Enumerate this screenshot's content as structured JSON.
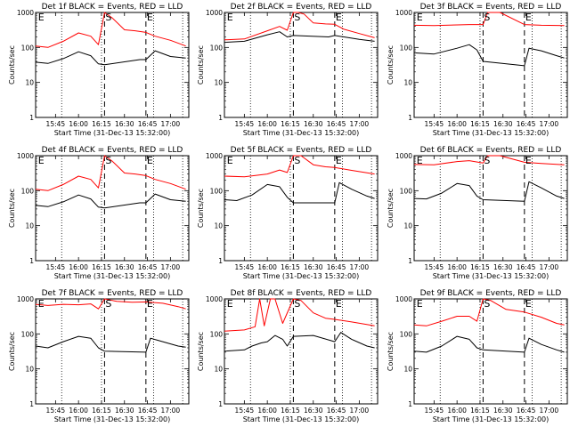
{
  "chart_data": {
    "type": "line",
    "panel_count": 9,
    "layout": "3x3 grid",
    "xlabel": "Start Time (31-Dec-13 15:32:00)",
    "ylabel": "Counts/sec",
    "y_scale": "log",
    "ylim": [
      1,
      1000
    ],
    "y_ticks": [
      "1",
      "10",
      "100",
      "1000"
    ],
    "x_ticks": [
      "15:45",
      "16:00",
      "16:15",
      "16:30",
      "16:45",
      "17:00"
    ],
    "xlim": [
      "15:32",
      "17:12"
    ],
    "event_markers": {
      "dotted_lines": [
        "15:49",
        "16:15",
        "16:49",
        "17:08"
      ],
      "dashed_lines": [
        "16:17",
        "16:44"
      ],
      "labels": [
        {
          "text": "E",
          "time": "15:33"
        },
        {
          "text": "S",
          "time": "16:17"
        },
        {
          "text": "E",
          "time": "16:44"
        }
      ]
    },
    "colors": {
      "events": "#000000",
      "lld": "#ff0000"
    },
    "series_names": [
      "BLACK = Events",
      "RED = LLD"
    ],
    "panels": [
      {
        "title": "Det 1f BLACK = Events, RED = LLD",
        "events": {
          "t": [
            "15:32",
            "15:40",
            "15:50",
            "16:00",
            "16:08",
            "16:13",
            "16:17",
            "16:40",
            "16:44",
            "16:50",
            "17:00",
            "17:10"
          ],
          "v": [
            38,
            35,
            48,
            75,
            58,
            34,
            32,
            45,
            45,
            80,
            55,
            50
          ]
        },
        "lld": {
          "t": [
            "15:32",
            "15:40",
            "15:50",
            "16:00",
            "16:08",
            "16:13",
            "16:17",
            "16:22",
            "16:30",
            "16:37",
            "16:44",
            "16:50",
            "17:00",
            "17:10"
          ],
          "v": [
            110,
            100,
            150,
            260,
            210,
            120,
            1000,
            700,
            320,
            300,
            270,
            210,
            160,
            110
          ]
        }
      },
      {
        "title": "Det 2f BLACK = Events, RED = LLD",
        "events": {
          "t": [
            "15:32",
            "15:45",
            "16:00",
            "16:08",
            "16:13",
            "16:17",
            "16:40",
            "16:44",
            "16:50",
            "17:00",
            "17:10"
          ],
          "v": [
            140,
            150,
            230,
            280,
            200,
            220,
            200,
            220,
            200,
            170,
            150
          ]
        },
        "lld": {
          "t": [
            "15:32",
            "15:45",
            "16:00",
            "16:08",
            "16:13",
            "16:17",
            "16:20",
            "16:24",
            "16:30",
            "16:38",
            "16:44",
            "16:50",
            "17:00",
            "17:10"
          ],
          "v": [
            165,
            175,
            300,
            400,
            310,
            1000,
            1000,
            900,
            500,
            470,
            460,
            330,
            250,
            190
          ]
        }
      },
      {
        "title": "Det 3f BLACK = Events, RED = LLD",
        "events": {
          "t": [
            "15:32",
            "15:45",
            "16:00",
            "16:08",
            "16:13",
            "16:17",
            "16:44",
            "16:47",
            "16:55",
            "17:05",
            "17:10"
          ],
          "v": [
            70,
            65,
            95,
            120,
            85,
            40,
            30,
            95,
            80,
            58,
            50
          ]
        },
        "lld": {
          "t": [
            "15:32",
            "15:45",
            "16:00",
            "16:08",
            "16:17",
            "16:20",
            "16:28",
            "16:44",
            "16:55",
            "17:10"
          ],
          "v": [
            430,
            420,
            440,
            450,
            450,
            1000,
            1000,
            450,
            430,
            420
          ]
        }
      },
      {
        "title": "Det 4f BLACK = Events, RED = LLD",
        "events": {
          "t": [
            "15:32",
            "15:40",
            "15:50",
            "16:00",
            "16:08",
            "16:13",
            "16:17",
            "16:40",
            "16:44",
            "16:50",
            "17:00",
            "17:10"
          ],
          "v": [
            38,
            35,
            48,
            75,
            58,
            34,
            32,
            45,
            45,
            80,
            55,
            50
          ]
        },
        "lld": {
          "t": [
            "15:32",
            "15:40",
            "15:50",
            "16:00",
            "16:08",
            "16:13",
            "16:17",
            "16:22",
            "16:30",
            "16:37",
            "16:44",
            "16:50",
            "17:00",
            "17:10"
          ],
          "v": [
            110,
            100,
            150,
            260,
            210,
            120,
            1000,
            700,
            320,
            300,
            270,
            210,
            160,
            110
          ]
        }
      },
      {
        "title": "Det 5f BLACK = Events, RED = LLD",
        "events": {
          "t": [
            "15:32",
            "15:40",
            "15:50",
            "16:00",
            "16:08",
            "16:13",
            "16:17",
            "16:44",
            "16:47",
            "16:55",
            "17:05",
            "17:10"
          ],
          "v": [
            55,
            52,
            75,
            150,
            130,
            65,
            45,
            45,
            170,
            110,
            70,
            60
          ]
        },
        "lld": {
          "t": [
            "15:32",
            "15:45",
            "16:00",
            "16:08",
            "16:13",
            "16:17",
            "16:22",
            "16:30",
            "16:38",
            "16:44",
            "16:55",
            "17:10"
          ],
          "v": [
            260,
            250,
            300,
            390,
            330,
            1000,
            1000,
            550,
            480,
            460,
            380,
            300
          ]
        }
      },
      {
        "title": "Det 6f BLACK = Events, RED = LLD",
        "events": {
          "t": [
            "15:32",
            "15:40",
            "15:50",
            "16:00",
            "16:08",
            "16:13",
            "16:17",
            "16:44",
            "16:47",
            "16:55",
            "17:05",
            "17:10"
          ],
          "v": [
            60,
            58,
            85,
            160,
            140,
            70,
            55,
            50,
            180,
            120,
            70,
            60
          ]
        },
        "lld": {
          "t": [
            "15:32",
            "15:45",
            "16:00",
            "16:08",
            "16:17",
            "16:20",
            "16:28",
            "16:44",
            "16:55",
            "17:10"
          ],
          "v": [
            560,
            550,
            680,
            720,
            620,
            1000,
            1000,
            650,
            600,
            550
          ]
        }
      },
      {
        "title": "Det 7f BLACK = Events, RED = LLD",
        "events": {
          "t": [
            "15:32",
            "15:40",
            "15:50",
            "16:00",
            "16:08",
            "16:13",
            "16:17",
            "16:44",
            "16:47",
            "16:55",
            "17:05",
            "17:10"
          ],
          "v": [
            45,
            40,
            60,
            85,
            75,
            40,
            32,
            30,
            75,
            60,
            45,
            42
          ]
        },
        "lld": {
          "t": [
            "15:32",
            "15:40",
            "15:50",
            "16:00",
            "16:08",
            "16:13",
            "16:17",
            "16:25",
            "16:35",
            "16:44",
            "16:55",
            "17:05",
            "17:10"
          ],
          "v": [
            700,
            650,
            700,
            680,
            720,
            520,
            1000,
            850,
            800,
            820,
            750,
            600,
            520
          ]
        }
      },
      {
        "title": "Det 8f BLACK = Events, RED = LLD",
        "events": {
          "t": [
            "15:32",
            "15:45",
            "15:50",
            "15:56",
            "16:00",
            "16:05",
            "16:10",
            "16:13",
            "16:17",
            "16:30",
            "16:44",
            "16:48",
            "16:55",
            "17:05",
            "17:10"
          ],
          "v": [
            32,
            35,
            45,
            55,
            60,
            90,
            70,
            45,
            85,
            90,
            60,
            110,
            70,
            45,
            40
          ]
        },
        "lld": {
          "t": [
            "15:32",
            "15:45",
            "15:52",
            "15:55",
            "15:58",
            "16:02",
            "16:05",
            "16:10",
            "16:17",
            "16:22",
            "16:30",
            "16:38",
            "16:44",
            "16:55",
            "17:10"
          ],
          "v": [
            120,
            130,
            160,
            1000,
            170,
            1000,
            1000,
            200,
            1000,
            900,
            400,
            280,
            260,
            220,
            170
          ]
        }
      },
      {
        "title": "Det 9f BLACK = Events, RED = LLD",
        "events": {
          "t": [
            "15:32",
            "15:40",
            "15:50",
            "16:00",
            "16:08",
            "16:13",
            "16:17",
            "16:44",
            "16:47",
            "16:55",
            "17:05",
            "17:10"
          ],
          "v": [
            32,
            30,
            45,
            85,
            70,
            40,
            35,
            30,
            75,
            50,
            35,
            30
          ]
        },
        "lld": {
          "t": [
            "15:32",
            "15:40",
            "15:50",
            "16:00",
            "16:08",
            "16:13",
            "16:17",
            "16:22",
            "16:32",
            "16:44",
            "16:55",
            "17:05",
            "17:10"
          ],
          "v": [
            180,
            170,
            230,
            320,
            320,
            230,
            1000,
            900,
            500,
            420,
            300,
            200,
            180
          ]
        }
      }
    ]
  }
}
